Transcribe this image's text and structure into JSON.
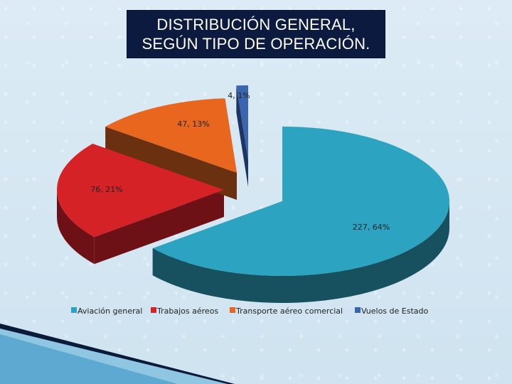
{
  "title": {
    "line1": "DISTRIBUCIÓN GENERAL,",
    "line2": "SEGÚN TIPO DE OPERACIÓN."
  },
  "chart_data": {
    "type": "pie",
    "title": "DISTRIBUCIÓN GENERAL, SEGÚN TIPO DE OPERACIÓN.",
    "categories": [
      "Aviación general",
      "Trabajos aéreos",
      "Transporte aéreo comercial",
      "Vuelos de Estado"
    ],
    "values": [
      227,
      76,
      47,
      4
    ],
    "percentages": [
      64,
      21,
      13,
      1
    ],
    "data_labels": [
      "227, 64%",
      "76, 21%",
      "47, 13%",
      "4, 1%"
    ],
    "colors": [
      "#2ba3c1",
      "#d42226",
      "#e8661e",
      "#3a66ad"
    ],
    "side_colors": [
      "#17515f",
      "#6e1116",
      "#6a3010",
      "#1e3563"
    ],
    "legend_position": "bottom",
    "style": "3d-exploded"
  }
}
